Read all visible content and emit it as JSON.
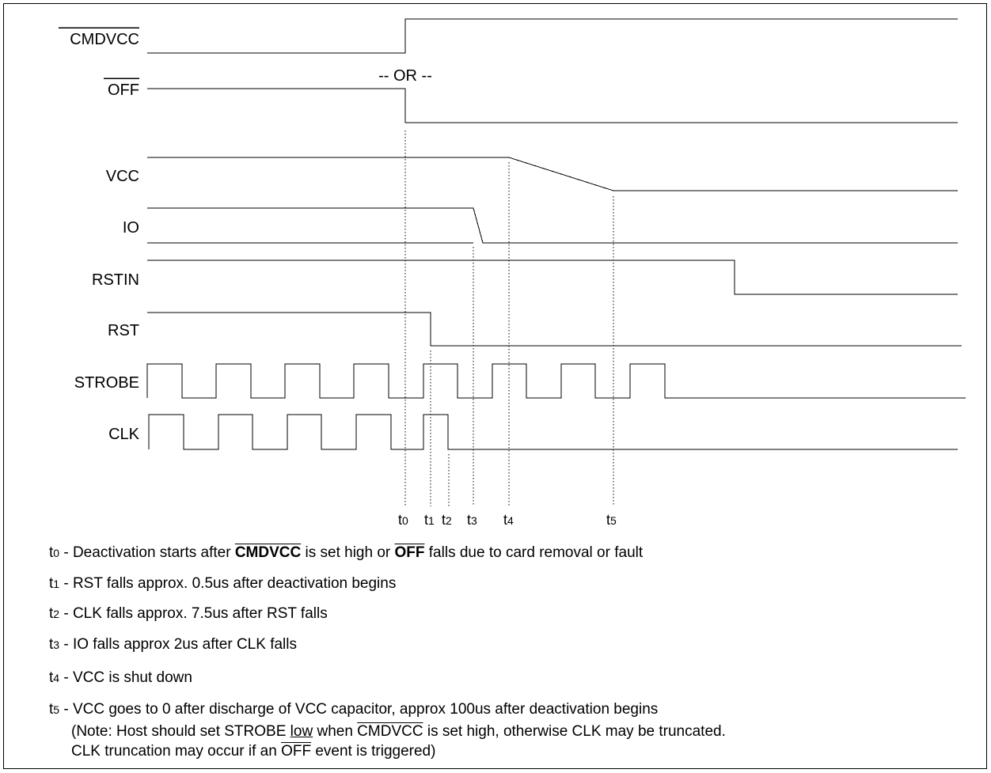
{
  "diagram": {
    "signals": [
      {
        "id": "cmdvcc",
        "label": "CMDVCC",
        "overline": true
      },
      {
        "id": "off",
        "label": "OFF",
        "overline": true
      },
      {
        "id": "vcc",
        "label": "VCC",
        "overline": false
      },
      {
        "id": "io",
        "label": "IO",
        "overline": false
      },
      {
        "id": "rstin",
        "label": "RSTIN",
        "overline": false
      },
      {
        "id": "rst",
        "label": "RST",
        "overline": false
      },
      {
        "id": "strobe",
        "label": "STROBE",
        "overline": false
      },
      {
        "id": "clk",
        "label": "CLK",
        "overline": false
      }
    ],
    "or_label": "-- OR --",
    "time_markers": [
      {
        "id": "t0",
        "base": "t",
        "sub": "0"
      },
      {
        "id": "t1",
        "base": "t",
        "sub": "1"
      },
      {
        "id": "t2",
        "base": "t",
        "sub": "2"
      },
      {
        "id": "t3",
        "base": "t",
        "sub": "3"
      },
      {
        "id": "t4",
        "base": "t",
        "sub": "4"
      },
      {
        "id": "t5",
        "base": "t",
        "sub": "5"
      }
    ]
  },
  "notes": {
    "t0": {
      "sub": "0",
      "a": " - Deactivation starts after ",
      "b": "CMDVCC",
      "c": " is set high or ",
      "d": "OFF",
      "e": " falls due to card removal or fault"
    },
    "t1": {
      "sub": "1",
      "text": " - RST falls approx. 0.5us after deactivation begins"
    },
    "t2": {
      "sub": "2",
      "text": " - CLK falls approx. 7.5us after RST falls"
    },
    "t3": {
      "sub": "3",
      "text": " - IO falls approx 2us after CLK falls"
    },
    "t4": {
      "sub": "4",
      "text": " - VCC is shut down"
    },
    "t5": {
      "sub": "5",
      "text": " - VCC goes to 0 after discharge of VCC capacitor, approx 100us after deactivation begins"
    },
    "note_line1": {
      "a": "(Note: Host should set STROBE ",
      "b": "low",
      "c": " when ",
      "d": "CMDVCC",
      "e": " is set high, otherwise CLK  may be truncated."
    },
    "note_line2": {
      "a": "CLK truncation may occur if an ",
      "b": "OFF",
      "c": "  event is triggered)"
    }
  }
}
